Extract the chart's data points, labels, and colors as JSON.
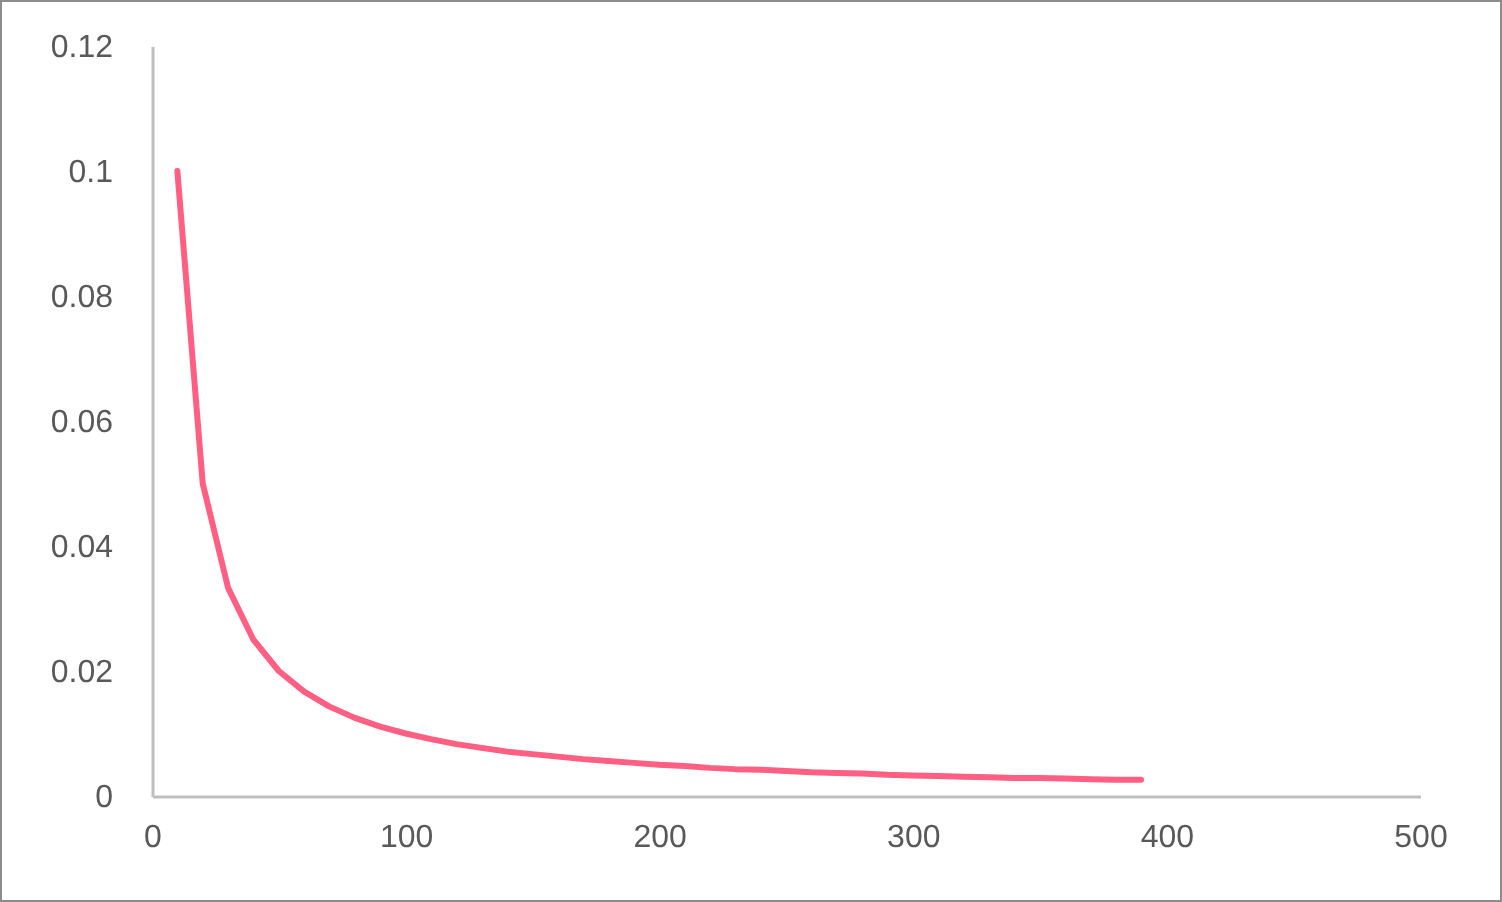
{
  "chart_data": {
    "type": "line",
    "color": "#fe5f82",
    "line_style": "solid",
    "grid": false,
    "x": [
      10,
      20,
      30,
      40,
      50,
      60,
      70,
      80,
      90,
      100,
      110,
      120,
      130,
      140,
      150,
      160,
      170,
      180,
      190,
      200,
      210,
      220,
      230,
      240,
      250,
      260,
      270,
      280,
      290,
      300,
      310,
      320,
      330,
      340,
      350,
      360,
      370,
      380,
      390
    ],
    "values": [
      0.1,
      0.05,
      0.0333,
      0.025,
      0.02,
      0.0167,
      0.0143,
      0.0125,
      0.0111,
      0.01,
      0.0091,
      0.0083,
      0.0077,
      0.0071,
      0.0067,
      0.0063,
      0.0059,
      0.0056,
      0.0053,
      0.005,
      0.0048,
      0.0045,
      0.0043,
      0.0042,
      0.004,
      0.0038,
      0.0037,
      0.0036,
      0.0034,
      0.0033,
      0.0032,
      0.0031,
      0.003,
      0.0029,
      0.0029,
      0.0028,
      0.0027,
      0.0026,
      0.0026
    ],
    "xlim": [
      0,
      500
    ],
    "xticks": [
      0,
      100,
      200,
      300,
      400,
      500
    ],
    "ylim": [
      0,
      0.12
    ],
    "yticks": [
      0,
      0.02,
      0.04,
      0.06,
      0.08,
      0.1,
      0.12
    ]
  }
}
